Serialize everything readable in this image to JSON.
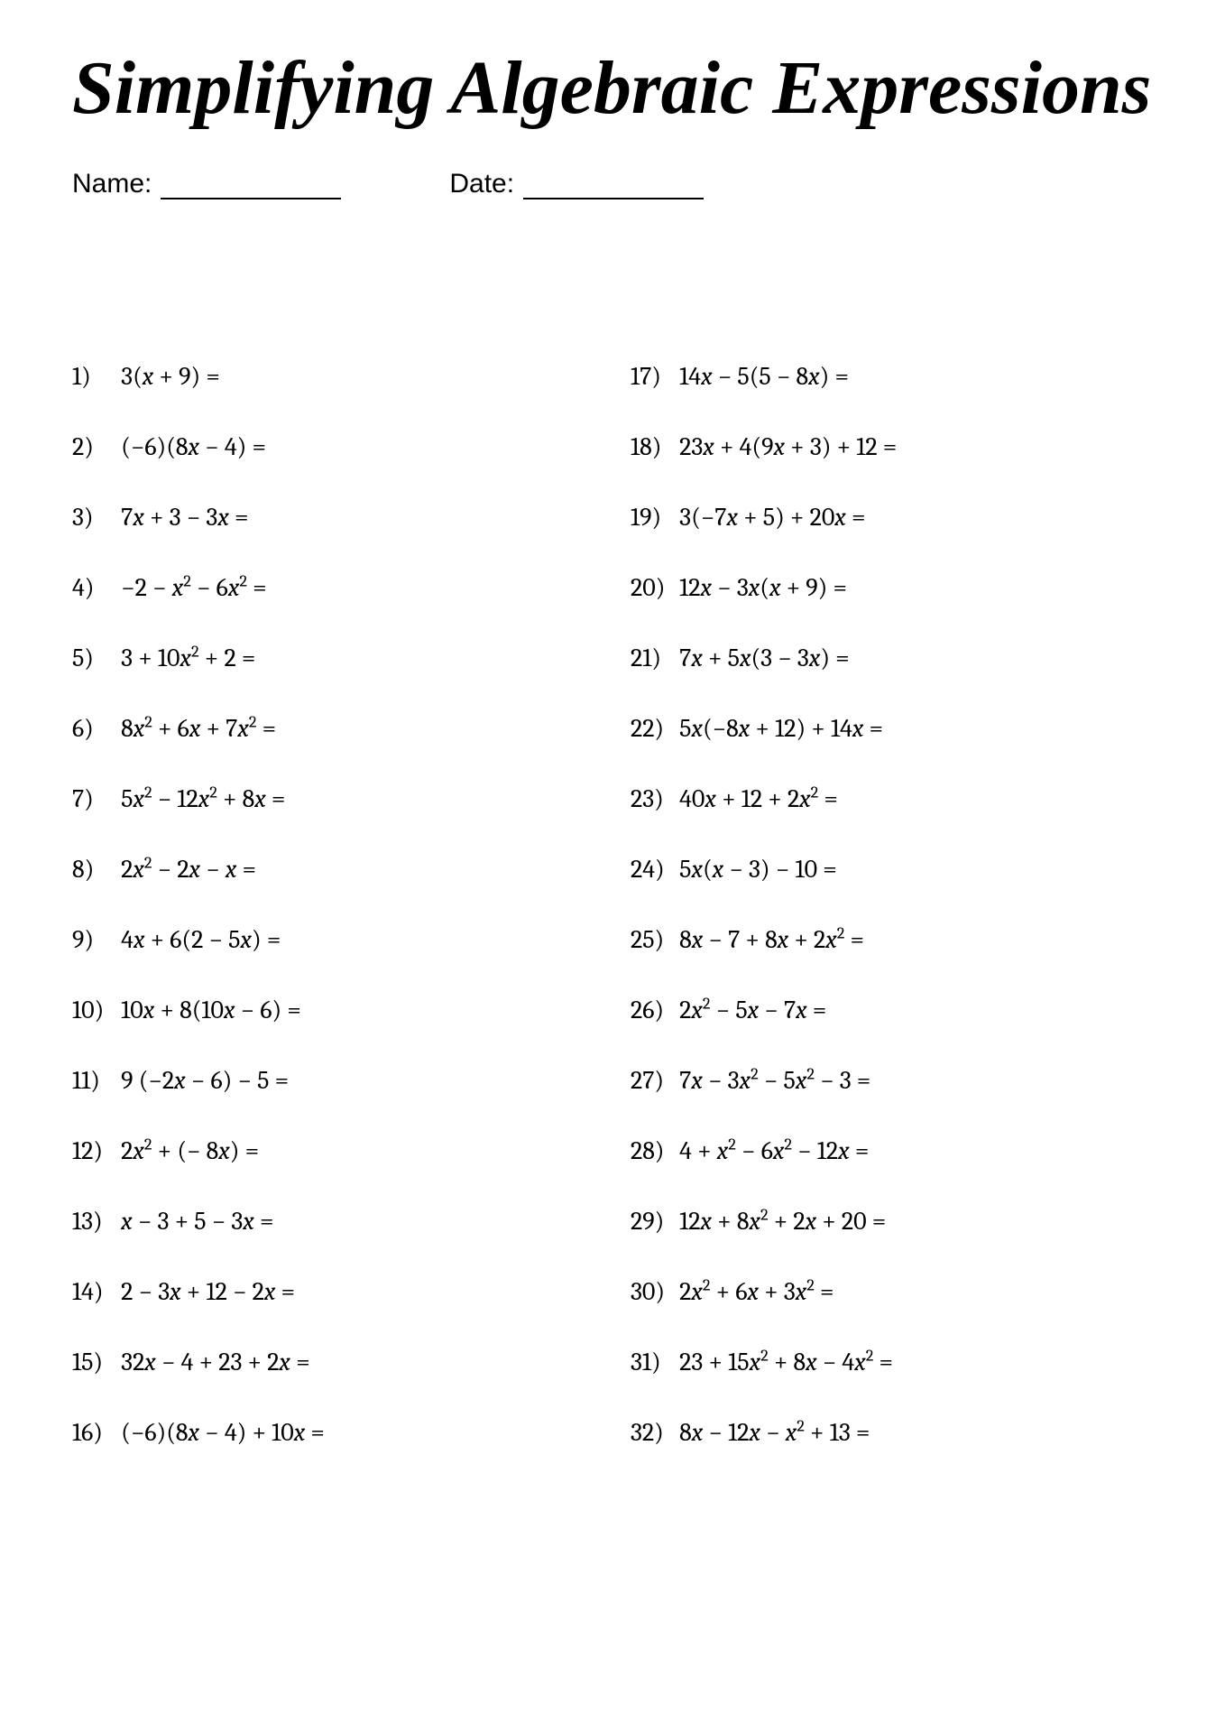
{
  "title": "Simplifying Algebraic Expressions",
  "name_label": "Name:",
  "date_label": "Date:",
  "columns": [
    [
      {
        "n": "1)",
        "expr": "3(<i>x</i> + 9) ="
      },
      {
        "n": "2)",
        "expr": "(−6)(8<i>x</i> − 4) ="
      },
      {
        "n": "3)",
        "expr": "7<i>x</i> + 3 − 3<i>x</i> ="
      },
      {
        "n": "4)",
        "expr": "−2 − <i>x</i><sup>2</sup> − 6<i>x</i><sup>2</sup> ="
      },
      {
        "n": "5)",
        "expr": "3 + 10<i>x</i><sup>2</sup> + 2 ="
      },
      {
        "n": "6)",
        "expr": "8<i>x</i><sup>2</sup> + 6<i>x</i> + 7<i>x</i><sup>2</sup> ="
      },
      {
        "n": "7)",
        "expr": "5<i>x</i><sup>2</sup> − 12<i>x</i><sup>2</sup> + 8<i>x</i> ="
      },
      {
        "n": "8)",
        "expr": "2<i>x</i><sup>2</sup> − 2<i>x</i> − <i>x</i> ="
      },
      {
        "n": "9)",
        "expr": "4<i>x</i> + 6(2 − 5<i>x</i>) ="
      },
      {
        "n": "10)",
        "expr": "10<i>x</i> + 8(10<i>x</i> − 6) ="
      },
      {
        "n": "11)",
        "expr": "9 (−2<i>x</i> − 6) − 5 ="
      },
      {
        "n": "12)",
        "expr": " 2<i>x</i><sup>2</sup> + (− 8<i>x</i>) ="
      },
      {
        "n": "13)",
        "expr": " <i>x</i> − 3 + 5 − 3<i>x</i> ="
      },
      {
        "n": "14)",
        "expr": " 2 − 3<i>x</i> + 12 − 2<i>x</i> ="
      },
      {
        "n": "15)",
        "expr": " 32<i>x</i> − 4 + 23 + 2<i>x</i> ="
      },
      {
        "n": "16)",
        "expr": "(−6)(8<i>x</i> − 4) + 10<i>x</i> ="
      }
    ],
    [
      {
        "n": "17)",
        "expr": "14<i>x</i> − 5(5 −  8<i>x</i>) ="
      },
      {
        "n": "18)",
        "expr": "23<i>x</i> + 4(9<i>x</i> + 3) + 12 ="
      },
      {
        "n": "19)",
        "expr": "3(−7<i>x</i> + 5) + 20<i>x</i> ="
      },
      {
        "n": "20)",
        "expr": "12<i>x</i> − 3<i>x</i>(<i>x</i> + 9) ="
      },
      {
        "n": "21)",
        "expr": "7<i>x</i> + 5<i>x</i>(3 − 3<i>x</i>) ="
      },
      {
        "n": "22)",
        "expr": "5<i>x</i>(−8<i>x</i> + 12) + 14<i>x</i> ="
      },
      {
        "n": "23)",
        "expr": "40<i>x</i> + 12 + 2<i>x</i><sup>2</sup> ="
      },
      {
        "n": "24)",
        "expr": "5<i>x</i>(<i>x</i> − 3) − 10 ="
      },
      {
        "n": "25)",
        "expr": "8<i>x</i> − 7 + 8<i>x</i> + 2<i>x</i><sup>2</sup> ="
      },
      {
        "n": "26)",
        "expr": "2<i>x</i><sup>2</sup> − 5<i>x</i> − 7<i>x</i> ="
      },
      {
        "n": "27)",
        "expr": "7<i>x</i> − 3<i>x</i><sup>2</sup> − 5<i>x</i><sup>2</sup> − 3 ="
      },
      {
        "n": "28)",
        "expr": "4 + <i>x</i><sup>2</sup> − 6<i>x</i><sup>2</sup> − 12<i>x</i> ="
      },
      {
        "n": "29)",
        "expr": "12<i>x</i> + 8<i>x</i><sup>2</sup> + 2<i>x</i> + 20 ="
      },
      {
        "n": "30)",
        "expr": "2<i>x</i><sup>2</sup> + 6<i>x</i> + 3<i>x</i><sup>2</sup> ="
      },
      {
        "n": "31)",
        "expr": "23 + 15<i>x</i><sup>2</sup> + 8<i>x</i> − 4<i>x</i><sup>2</sup> ="
      },
      {
        "n": "32)",
        "expr": "8<i>x</i> − 12<i>x</i> − <i>x</i><sup>2</sup> + 13 ="
      }
    ]
  ]
}
